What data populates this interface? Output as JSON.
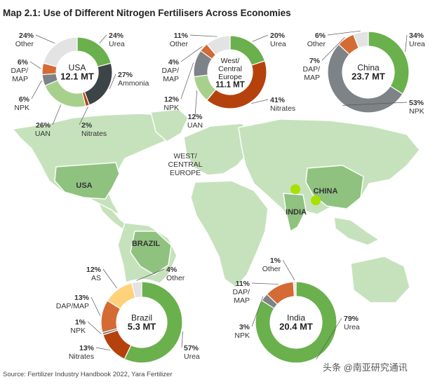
{
  "figure": {
    "title": "Map 2.1: Use of Different Nitrogen Fertilisers Across Economies",
    "source": "Source: Fertilizer Industry Handbook 2022, Yara Fertilizer",
    "watermark": "头条 @南亚研究通讯"
  },
  "map_labels": {
    "usa": "USA",
    "europe": [
      "WEST/",
      "CENTRAL",
      "EUROPE"
    ],
    "china": "CHINA",
    "india": "INDIA",
    "brazil": "BRAZIL"
  },
  "colors": {
    "Urea": "#6ab04c",
    "Ammonia": "#3d4448",
    "Nitrates": "#b5420d",
    "UAN": "#a8d08d",
    "NPK": "#7d8387",
    "DAP/MAP": "#d46a34",
    "Other": "#e3e3e3",
    "AS": "#ffd27a",
    "land": "#c6e2bc",
    "land_highlight": "#8fc27f",
    "marker": "#a8e000"
  },
  "chart_data": [
    {
      "type": "pie",
      "region": "USA",
      "center_label": [
        "USA",
        "12.1 MT"
      ],
      "slices": [
        {
          "name": "Urea",
          "value": 24,
          "label": [
            "24%",
            "Urea"
          ]
        },
        {
          "name": "Ammonia",
          "value": 27,
          "label": [
            "27%",
            "Ammonia"
          ]
        },
        {
          "name": "Nitrates",
          "value": 2,
          "label": [
            "2%",
            "Nitrates"
          ]
        },
        {
          "name": "UAN",
          "value": 26,
          "label": [
            "26%",
            "UAN"
          ]
        },
        {
          "name": "NPK",
          "value": 6,
          "label": [
            "6%",
            "NPK"
          ]
        },
        {
          "name": "DAP/MAP",
          "value": 6,
          "label": [
            "6%",
            "DAP/",
            "MAP"
          ]
        },
        {
          "name": "Other",
          "value": 24,
          "label": [
            "24%",
            "Other"
          ]
        }
      ]
    },
    {
      "type": "pie",
      "region": "West/Central Europe",
      "center_label": [
        "West/",
        "Central",
        "Europe",
        "11.1 MT"
      ],
      "slices": [
        {
          "name": "Urea",
          "value": 20,
          "label": [
            "20%",
            "Urea"
          ]
        },
        {
          "name": "Nitrates",
          "value": 41,
          "label": [
            "41%",
            "Nitrates"
          ]
        },
        {
          "name": "UAN",
          "value": 12,
          "label": [
            "12%",
            "UAN"
          ]
        },
        {
          "name": "NPK",
          "value": 12,
          "label": [
            "12%",
            "NPK"
          ]
        },
        {
          "name": "DAP/MAP",
          "value": 4,
          "label": [
            "4%",
            "DAP/",
            "MAP"
          ]
        },
        {
          "name": "Other",
          "value": 11,
          "label": [
            "11%",
            "Other"
          ]
        }
      ]
    },
    {
      "type": "pie",
      "region": "China",
      "center_label": [
        "China",
        "23.7 MT"
      ],
      "slices": [
        {
          "name": "Urea",
          "value": 34,
          "label": [
            "34%",
            "Urea"
          ]
        },
        {
          "name": "NPK",
          "value": 53,
          "label": [
            "53%",
            "NPK"
          ]
        },
        {
          "name": "DAP/MAP",
          "value": 7,
          "label": [
            "7%",
            "DAP/",
            "MAP"
          ]
        },
        {
          "name": "Other",
          "value": 6,
          "label": [
            "6%",
            "Other"
          ]
        }
      ]
    },
    {
      "type": "pie",
      "region": "Brazil",
      "center_label": [
        "Brazil",
        "5.3 MT"
      ],
      "slices": [
        {
          "name": "Urea",
          "value": 57,
          "label": [
            "57%",
            "Urea"
          ]
        },
        {
          "name": "Nitrates",
          "value": 13,
          "label": [
            "13%",
            "Nitrates"
          ]
        },
        {
          "name": "NPK",
          "value": 1,
          "label": [
            "1%",
            "NPK"
          ]
        },
        {
          "name": "DAP/MAP",
          "value": 13,
          "label": [
            "13%",
            "DAP/MAP"
          ]
        },
        {
          "name": "AS",
          "value": 12,
          "label": [
            "12%",
            "AS"
          ]
        },
        {
          "name": "Other",
          "value": 4,
          "label": [
            "4%",
            "Other"
          ]
        }
      ]
    },
    {
      "type": "pie",
      "region": "India",
      "center_label": [
        "India",
        "20.4 MT"
      ],
      "slices": [
        {
          "name": "Urea",
          "value": 79,
          "label": [
            "79%",
            "Urea"
          ]
        },
        {
          "name": "NPK",
          "value": 3,
          "label": [
            "3%",
            "NPK"
          ]
        },
        {
          "name": "DAP/MAP",
          "value": 11,
          "label": [
            "11%",
            "DAP/",
            "MAP"
          ]
        },
        {
          "name": "Other",
          "value": 1,
          "label": [
            "1%",
            "Other"
          ]
        }
      ]
    }
  ]
}
